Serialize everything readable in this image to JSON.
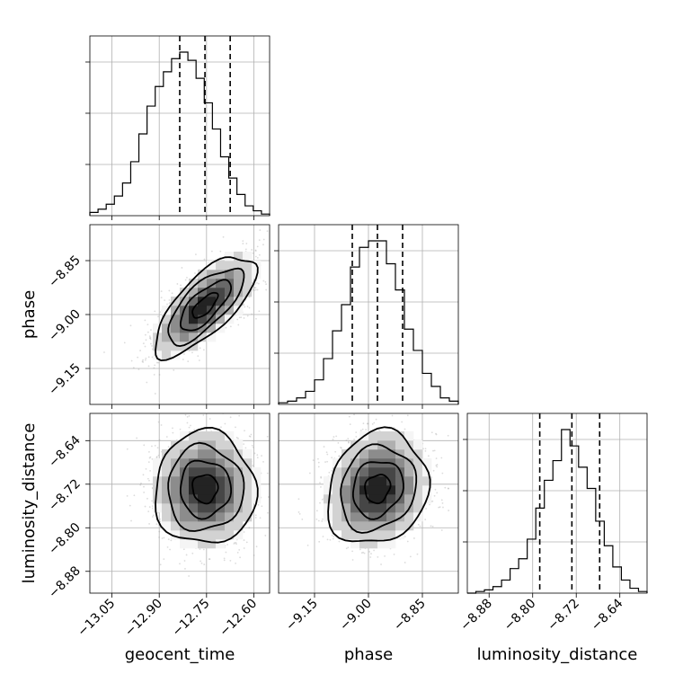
{
  "chart_data": {
    "type": "corner",
    "parameters": [
      {
        "key": "gt",
        "label": "geocent_time",
        "range": [
          -13.12,
          -12.55
        ],
        "ticks": [
          -13.05,
          -12.9,
          -12.75,
          -12.6
        ],
        "tick_labels": [
          "−13.05",
          "−12.90",
          "−12.75",
          "−12.60"
        ],
        "quantiles": [
          -12.835,
          -12.755,
          -12.675
        ],
        "hist": [
          2,
          4,
          7,
          12,
          20,
          33,
          50,
          67,
          79,
          88,
          96,
          100,
          95,
          84,
          69,
          53,
          36,
          23,
          13,
          6,
          3,
          1
        ],
        "hist_max": 100
      },
      {
        "key": "ph",
        "label": "phase",
        "range": [
          -9.25,
          -8.75
        ],
        "ticks": [
          -9.15,
          -9.0,
          -8.85
        ],
        "tick_labels": [
          "−9.15",
          "−9.00",
          "−8.85"
        ],
        "quantiles": [
          -9.045,
          -8.975,
          -8.905
        ],
        "hist": [
          1,
          2,
          4,
          8,
          15,
          28,
          45,
          61,
          84,
          96,
          100,
          100,
          86,
          70,
          46,
          33,
          19,
          11,
          4,
          2
        ],
        "hist_max": 100
      },
      {
        "key": "ld",
        "label": "luminosity_distance",
        "range": [
          -8.92,
          -8.59
        ],
        "ticks": [
          -8.88,
          -8.8,
          -8.72,
          -8.64
        ],
        "tick_labels": [
          "−8.88",
          "−8.80",
          "−8.72",
          "−8.64"
        ],
        "quantiles": [
          -8.787,
          -8.728,
          -8.677
        ],
        "hist": [
          0,
          1,
          2,
          4,
          8,
          15,
          21,
          33,
          52,
          69,
          81,
          100,
          90,
          77,
          64,
          44,
          29,
          16,
          8,
          3,
          1
        ],
        "hist_max": 100
      }
    ],
    "pairs": [
      {
        "x": "gt",
        "y": "ph",
        "center": [
          -12.755,
          -8.975
        ],
        "sigma": [
          0.08,
          0.07
        ],
        "correlation": 0.72,
        "levels_sigma": [
          0.5,
          1.0,
          1.5,
          2.0
        ]
      },
      {
        "x": "gt",
        "y": "ld",
        "center": [
          -12.755,
          -8.728
        ],
        "sigma": [
          0.08,
          0.052
        ],
        "correlation": 0.0,
        "levels_sigma": [
          0.5,
          1.0,
          1.5,
          2.0
        ]
      },
      {
        "x": "ph",
        "y": "ld",
        "center": [
          -8.975,
          -8.728
        ],
        "sigma": [
          0.07,
          0.052
        ],
        "correlation": 0.15,
        "levels_sigma": [
          0.5,
          1.0,
          1.5,
          2.0
        ]
      }
    ],
    "grid": true,
    "colors": {
      "ink": "#000000",
      "grid": "#b0b0b0",
      "points": "#9a9a9a"
    }
  }
}
